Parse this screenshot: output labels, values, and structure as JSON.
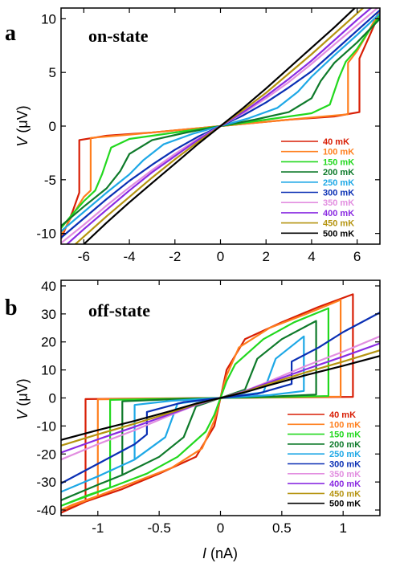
{
  "figure": {
    "panels": [
      {
        "letter": "a",
        "title": "on-state",
        "ylabel_italic": "V",
        "ylabel_unit": " (μV)"
      },
      {
        "letter": "b",
        "title": "off-state",
        "ylabel_italic": "V",
        "ylabel_unit": " (μV)",
        "xlabel_italic": "I",
        "xlabel_unit": " (nA)"
      }
    ]
  },
  "chart_data": [
    {
      "type": "line",
      "panel": "a",
      "title": "on-state",
      "xlabel": "",
      "ylabel": "V (μV)",
      "xlim": [
        -7,
        7
      ],
      "ylim": [
        -11,
        11
      ],
      "xticks": [
        -6,
        -4,
        -2,
        0,
        2,
        4,
        6
      ],
      "xtick_labels": [
        "-6",
        "-4",
        "-2",
        "0",
        "2",
        "4",
        "6"
      ],
      "yticks": [
        -10,
        -5,
        0,
        5,
        10
      ],
      "ytick_labels": [
        "-10",
        "-5",
        "0",
        "5",
        "10"
      ],
      "legend_position": "bottom-right",
      "series": [
        {
          "name": "40 mK",
          "color": "#d81e05",
          "x": [
            -7,
            -6.5,
            -6.2,
            -6.2,
            -5,
            -3,
            -1,
            0,
            1,
            3,
            5,
            6.1,
            6.1,
            6.5,
            7
          ],
          "y": [
            -10.5,
            -8,
            -6.2,
            -1.3,
            -0.9,
            -0.6,
            -0.2,
            0,
            0.2,
            0.6,
            0.9,
            1.3,
            6.3,
            8.2,
            10.6
          ]
        },
        {
          "name": "100 mK",
          "color": "#ff7f1e",
          "x": [
            -7,
            -6.5,
            -6,
            -5.7,
            -5.7,
            -4,
            -2,
            0,
            2,
            4,
            5.6,
            5.6,
            6,
            6.5,
            7
          ],
          "y": [
            -10.2,
            -8.3,
            -6.6,
            -6,
            -1.1,
            -0.8,
            -0.4,
            0,
            0.4,
            0.8,
            1.1,
            5.9,
            7,
            8.8,
            10.8
          ]
        },
        {
          "name": "150 mK",
          "color": "#22d81e",
          "x": [
            -7,
            -6.5,
            -6,
            -5.5,
            -5.2,
            -4.8,
            -4,
            -2,
            0,
            2,
            4,
            4.8,
            5.2,
            5.5,
            6,
            6.5,
            7
          ],
          "y": [
            -9.5,
            -8.2,
            -7,
            -6,
            -4.5,
            -2,
            -1.2,
            -0.6,
            0,
            0.6,
            1.2,
            2,
            4.5,
            6,
            7.2,
            8.8,
            10.3
          ]
        },
        {
          "name": "200 mK",
          "color": "#0e7a2a",
          "x": [
            -7,
            -6,
            -5,
            -4.4,
            -4,
            -3,
            -1.5,
            0,
            1.5,
            3,
            4,
            4.4,
            5,
            6,
            7
          ],
          "y": [
            -9.3,
            -7.5,
            -5.8,
            -4.2,
            -2.6,
            -1.3,
            -0.6,
            0,
            0.6,
            1.3,
            2.6,
            4.2,
            5.9,
            7.8,
            10
          ]
        },
        {
          "name": "250 mK",
          "color": "#1ea8e6",
          "x": [
            -7,
            -6,
            -5,
            -4,
            -3.4,
            -2.5,
            -1.2,
            0,
            1.2,
            2.5,
            3.4,
            4,
            5,
            6,
            7
          ],
          "y": [
            -9.8,
            -8,
            -6.2,
            -4.5,
            -3.2,
            -1.7,
            -0.7,
            0,
            0.7,
            1.7,
            3.2,
            4.6,
            6.6,
            8.5,
            10.5
          ]
        },
        {
          "name": "300 mK",
          "color": "#0a2fb4",
          "x": [
            -7,
            -6,
            -5,
            -4,
            -3,
            -2,
            -1,
            0,
            1,
            2,
            3,
            4,
            5,
            6,
            7
          ],
          "y": [
            -10.4,
            -8.6,
            -6.8,
            -5.1,
            -3.6,
            -2.2,
            -1,
            0,
            1,
            2.2,
            3.6,
            5.1,
            7,
            8.9,
            10.8
          ]
        },
        {
          "name": "350 mK",
          "color": "#e28ee0",
          "x": [
            -7,
            -6,
            -5,
            -4,
            -3,
            -2,
            -1,
            0,
            1,
            2,
            3,
            4,
            5,
            6,
            7
          ],
          "y": [
            -10.9,
            -9.2,
            -7.4,
            -5.7,
            -4.1,
            -2.6,
            -1.2,
            0,
            1.2,
            2.6,
            4.1,
            5.8,
            7.6,
            9.4,
            11.2
          ]
        },
        {
          "name": "400 mK",
          "color": "#8a2be2",
          "x": [
            -7,
            -6,
            -5,
            -4,
            -3,
            -2,
            -1,
            0,
            1,
            2,
            3,
            4,
            5,
            6,
            7
          ],
          "y": [
            -11.5,
            -9.6,
            -7.8,
            -6,
            -4.3,
            -2.8,
            -1.3,
            0,
            1.3,
            2.8,
            4.4,
            6.1,
            8,
            9.9,
            11.7
          ]
        },
        {
          "name": "450 mK",
          "color": "#b59410",
          "x": [
            -7,
            -6,
            -5,
            -4,
            -3,
            -2,
            -1,
            0,
            1,
            2,
            3,
            4,
            5,
            6,
            7
          ],
          "y": [
            -12.2,
            -10.3,
            -8.4,
            -6.6,
            -4.8,
            -3.1,
            -1.5,
            0,
            1.5,
            3.1,
            4.9,
            6.7,
            8.6,
            10.5,
            12.4
          ]
        },
        {
          "name": "500 mK",
          "color": "#000000",
          "x": [
            -7,
            -6,
            -5,
            -4,
            -3,
            -2,
            -1,
            0,
            1,
            2,
            3,
            4,
            5,
            6,
            7
          ],
          "y": [
            -13,
            -11,
            -9,
            -7.1,
            -5.3,
            -3.5,
            -1.7,
            0,
            1.7,
            3.5,
            5.4,
            7.3,
            9.2,
            11.2,
            13.2
          ]
        }
      ]
    },
    {
      "type": "line",
      "panel": "b",
      "title": "off-state",
      "xlabel": "I (nA)",
      "ylabel": "V (μV)",
      "xlim": [
        -1.3,
        1.3
      ],
      "ylim": [
        -42,
        42
      ],
      "xticks": [
        -1,
        -0.5,
        0,
        0.5,
        1
      ],
      "xtick_labels": [
        "-1",
        "-0.5",
        "0",
        "0.5",
        "1"
      ],
      "yticks": [
        -40,
        -30,
        -20,
        -10,
        0,
        10,
        20,
        30,
        40
      ],
      "ytick_labels": [
        "-40",
        "-30",
        "-20",
        "-10",
        "0",
        "10",
        "20",
        "30",
        "40"
      ],
      "legend_position": "bottom-right",
      "series": [
        {
          "name": "40 mK",
          "color": "#d81e05",
          "x": [
            -1.3,
            -1.2,
            -1.1,
            -1.1,
            -0.8,
            -0.4,
            0,
            0.4,
            0.8,
            1.08,
            1.08,
            0.8,
            0.5,
            0.2,
            0.05,
            0,
            -0.05,
            -0.2,
            -0.5,
            -0.8,
            -1.1,
            -1.3
          ],
          "y": [
            -41,
            -38.8,
            -37,
            -0.4,
            -0.3,
            -0.15,
            0,
            0.15,
            0.3,
            0.4,
            37,
            32.5,
            27,
            21,
            10,
            0,
            -10,
            -21,
            -27,
            -32.5,
            -37,
            -41
          ]
        },
        {
          "name": "100 mK",
          "color": "#ff7f1e",
          "x": [
            -1.3,
            -1.2,
            -1.0,
            -1.0,
            -0.5,
            0,
            0.5,
            0.98,
            0.98,
            0.7,
            0.4,
            0.15,
            0.05,
            0,
            -0.05,
            -0.15,
            -0.4,
            -0.7,
            -1.0,
            -1.3
          ],
          "y": [
            -40,
            -38,
            -35,
            -0.5,
            -0.25,
            0,
            0.25,
            0.5,
            35,
            30,
            25,
            18,
            8,
            0,
            -8,
            -18,
            -25,
            -30,
            -35,
            -40
          ]
        },
        {
          "name": "150 mK",
          "color": "#22d81e",
          "x": [
            -1.3,
            -1.1,
            -0.9,
            -0.9,
            -0.5,
            0,
            0.5,
            0.88,
            0.88,
            0.6,
            0.35,
            0.12,
            0.05,
            0,
            -0.05,
            -0.12,
            -0.35,
            -0.6,
            -0.9,
            -1.3
          ],
          "y": [
            -38.5,
            -35,
            -32,
            -0.7,
            -0.35,
            0,
            0.35,
            0.7,
            32,
            27,
            21,
            12,
            6,
            0,
            -6,
            -12,
            -21,
            -27,
            -32,
            -38.5
          ]
        },
        {
          "name": "200 mK",
          "color": "#0e7a2a",
          "x": [
            -1.3,
            -1.0,
            -0.8,
            -0.8,
            -0.4,
            0,
            0.4,
            0.78,
            0.78,
            0.5,
            0.3,
            0.2,
            0,
            -0.2,
            -0.3,
            -0.5,
            -0.8,
            -1.0,
            -1.3
          ],
          "y": [
            -36.5,
            -31,
            -27.5,
            -1.2,
            -0.5,
            0,
            0.5,
            1.2,
            27.5,
            21,
            14,
            3,
            0,
            -3,
            -14,
            -21,
            -27.5,
            -31,
            -36.5
          ]
        },
        {
          "name": "250 mK",
          "color": "#1ea8e6",
          "x": [
            -1.3,
            -1.0,
            -0.7,
            -0.7,
            -0.4,
            0,
            0.4,
            0.68,
            0.68,
            0.45,
            0.35,
            0,
            -0.35,
            -0.45,
            -0.7,
            -1.0,
            -1.3
          ],
          "y": [
            -33.5,
            -28,
            -22,
            -2.5,
            -1,
            0,
            1,
            2.5,
            22,
            14,
            2,
            0,
            -2,
            -14,
            -22,
            -28,
            -33.5
          ]
        },
        {
          "name": "300 mK",
          "color": "#0a2fb4",
          "x": [
            -1.3,
            -1.0,
            -0.7,
            -0.6,
            -0.6,
            -0.3,
            0,
            0.3,
            0.58,
            0.58,
            0.8,
            1.0,
            1.3
          ],
          "y": [
            -30.5,
            -23.5,
            -16.5,
            -13,
            -5,
            -1.5,
            0,
            1.5,
            5,
            13,
            18,
            23.5,
            30.5
          ]
        },
        {
          "name": "350 mK",
          "color": "#e28ee0",
          "x": [
            -1.3,
            -1.0,
            -0.7,
            -0.4,
            -0.2,
            0,
            0.2,
            0.4,
            0.7,
            1.0,
            1.3
          ],
          "y": [
            -22,
            -16.5,
            -11.5,
            -6,
            -2.5,
            0,
            2.5,
            6,
            11.5,
            16.5,
            22
          ]
        },
        {
          "name": "400 mK",
          "color": "#8a2be2",
          "x": [
            -1.3,
            -1.0,
            -0.7,
            -0.4,
            -0.2,
            0,
            0.2,
            0.4,
            0.7,
            1.0,
            1.3
          ],
          "y": [
            -19.5,
            -14.8,
            -10.3,
            -5.6,
            -2.4,
            0,
            2.4,
            5.6,
            10.3,
            14.8,
            19.5
          ]
        },
        {
          "name": "450 mK",
          "color": "#b59410",
          "x": [
            -1.3,
            -1.0,
            -0.7,
            -0.4,
            -0.2,
            0,
            0.2,
            0.4,
            0.7,
            1.0,
            1.3
          ],
          "y": [
            -17,
            -13,
            -9.2,
            -5.1,
            -2.2,
            0,
            2.2,
            5.1,
            9.2,
            13,
            17
          ]
        },
        {
          "name": "500 mK",
          "color": "#000000",
          "x": [
            -1.3,
            -1.0,
            -0.7,
            -0.4,
            -0.2,
            0,
            0.2,
            0.4,
            0.7,
            1.0,
            1.3
          ],
          "y": [
            -15,
            -11.5,
            -8.2,
            -4.6,
            -2,
            0,
            2,
            4.6,
            8.2,
            11.5,
            15
          ]
        }
      ]
    }
  ]
}
